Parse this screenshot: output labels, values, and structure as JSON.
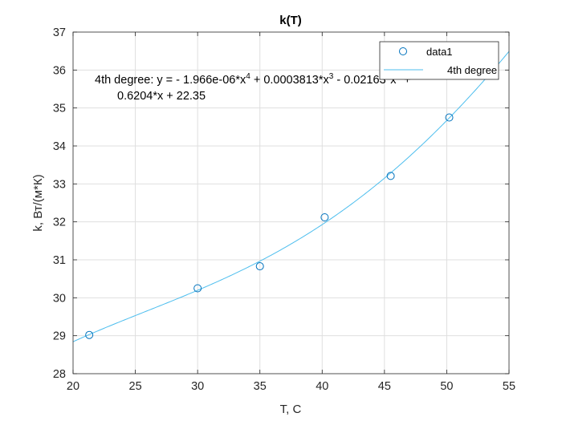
{
  "chart_data": {
    "type": "scatter",
    "title": "k(T)",
    "xlabel": "T, C",
    "ylabel": "k, Вт/(м*К)",
    "xlim": [
      20,
      55
    ],
    "ylim": [
      28,
      37
    ],
    "xticks": [
      20,
      25,
      30,
      35,
      40,
      45,
      50,
      55
    ],
    "yticks": [
      28,
      29,
      30,
      31,
      32,
      33,
      34,
      35,
      36,
      37
    ],
    "grid": true,
    "legend_position": "top-right",
    "series": [
      {
        "name": "data1",
        "kind": "markers",
        "marker": "circle",
        "color": "#0072bd",
        "x": [
          21.3,
          30.0,
          35.0,
          40.2,
          45.5,
          50.2
        ],
        "y": [
          29.02,
          30.25,
          30.83,
          32.12,
          33.21,
          34.75
        ]
      },
      {
        "name": "4th degree",
        "kind": "fit",
        "color": "#4dbeee",
        "coefficients": [
          -1.966e-06,
          0.0003813,
          -0.02163,
          0.6204,
          22.35
        ]
      }
    ],
    "annotation": {
      "line1_prefix": "4th degree:  y = - 1.966e-06*x",
      "exp4": "4",
      "line1_mid": " + 0.0003813*x",
      "exp3": "3",
      "line1_end": " - 0.02163*x",
      "exp2": "2",
      "line1_tail": " +",
      "line2": "0.6204*x + 22.35"
    }
  }
}
